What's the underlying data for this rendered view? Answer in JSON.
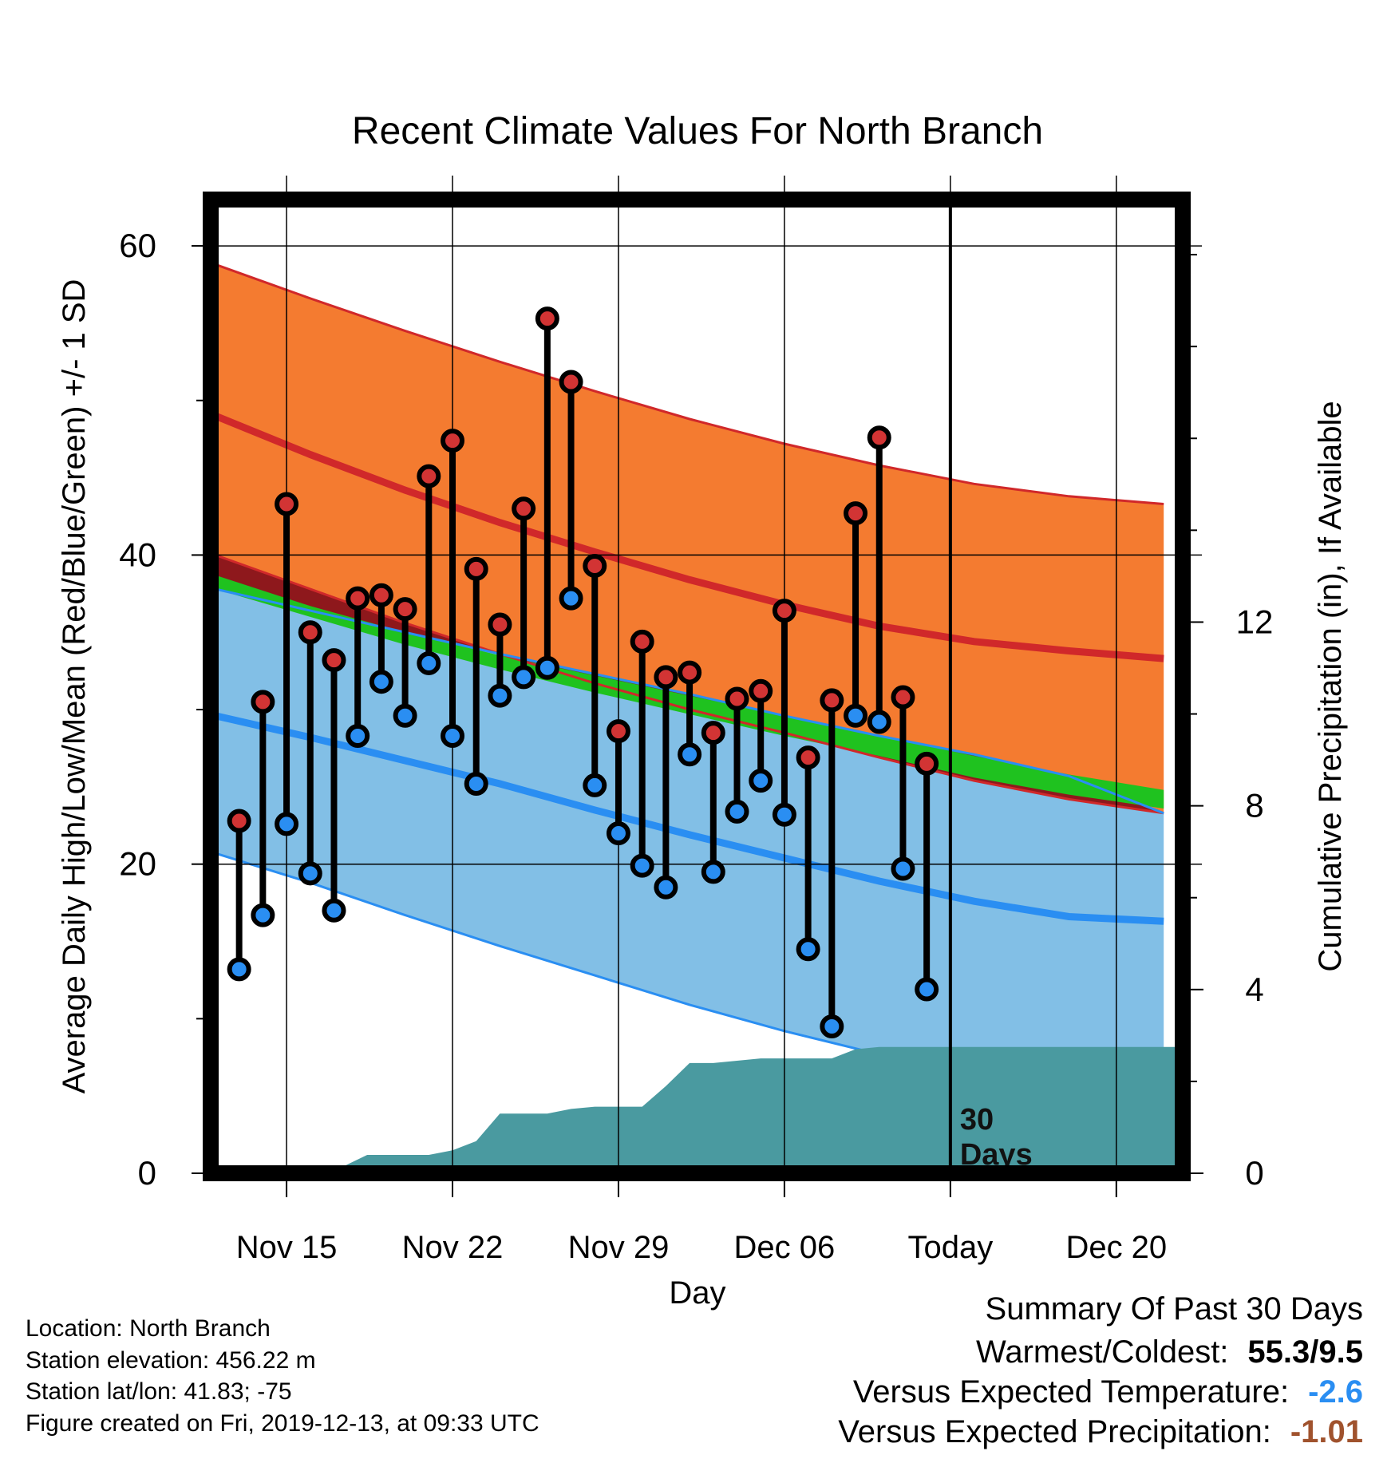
{
  "chart_data": {
    "type": "line",
    "title": "Recent Climate Values For North Branch",
    "xlabel": "Day",
    "ylabel_left": "Average Daily High/Low/Mean (Red/Blue/Green) +/- 1 SD",
    "ylabel_right": "Cumulative Precipitation (in), If Available",
    "ylim_left": [
      0,
      63
    ],
    "ylim_right": [
      0,
      21.2
    ],
    "x_ticks": [
      {
        "day": 15,
        "label": "Nov 15"
      },
      {
        "day": 22,
        "label": "Nov 22"
      },
      {
        "day": 29,
        "label": "Nov 29"
      },
      {
        "day": 36,
        "label": "Dec 06"
      },
      {
        "day": 43,
        "label": "Today"
      },
      {
        "day": 50,
        "label": "Dec 20"
      }
    ],
    "xlim": [
      11.8,
      52.8
    ],
    "y_ticks_left": [
      0,
      20,
      40,
      60
    ],
    "y_ticks_right": [
      0,
      4,
      8,
      12
    ],
    "today_day": 43,
    "today_annotation": [
      "30",
      "Days"
    ],
    "colors": {
      "high_band": "#f47b30",
      "high_line": "#d0282a",
      "low_band": "#82bfe6",
      "low_line": "#2a8ef2",
      "mean_band": "#1fc21f",
      "overlap": "#8e181c",
      "precip": "#4a9aa0",
      "high_dot": "#d23434",
      "low_dot": "#2a8ef2"
    },
    "normals": {
      "x": [
        12,
        16,
        20,
        24,
        28,
        32,
        36,
        40,
        44,
        48,
        52
      ],
      "high_mean": [
        49,
        46.5,
        44.2,
        42.1,
        40.2,
        38.4,
        36.8,
        35.4,
        34.4,
        33.8,
        33.3
      ],
      "high_sd_upper": [
        58.8,
        56.6,
        54.5,
        52.5,
        50.6,
        48.8,
        47.2,
        45.8,
        44.6,
        43.8,
        43.3
      ],
      "high_sd_lower": [
        40,
        37.8,
        35.6,
        33.6,
        31.7,
        30,
        28.5,
        26.9,
        25.4,
        24.2,
        23.3
      ],
      "low_mean": [
        29.6,
        28.2,
        26.7,
        25.2,
        23.5,
        21.9,
        20.4,
        18.9,
        17.6,
        16.6,
        16.3
      ],
      "low_sd_upper": [
        37.8,
        36.4,
        35,
        33.6,
        32.3,
        31,
        29.6,
        28.3,
        27.1,
        25.7,
        23.3
      ],
      "low_sd_lower": [
        20.7,
        18.8,
        16.7,
        14.7,
        12.8,
        10.9,
        9.2,
        7.7,
        5.9,
        4.3,
        3
      ],
      "mean_band_upper": [
        38.7,
        36.7,
        35,
        33.5,
        32.2,
        30.9,
        29.6,
        28.3,
        27,
        25.8,
        24.8
      ],
      "mean_band_lower": [
        37.8,
        36,
        34.2,
        32.6,
        31.1,
        29.7,
        28.3,
        27,
        25.6,
        24.5,
        23.6
      ]
    },
    "daily": [
      {
        "day": 13,
        "high": 22.8,
        "low": 13.2
      },
      {
        "day": 14,
        "high": 30.5,
        "low": 16.7
      },
      {
        "day": 15,
        "high": 43.3,
        "low": 22.6
      },
      {
        "day": 16,
        "high": 35.0,
        "low": 19.4
      },
      {
        "day": 17,
        "high": 33.2,
        "low": 17.0
      },
      {
        "day": 18,
        "high": 37.2,
        "low": 28.3
      },
      {
        "day": 19,
        "high": 37.4,
        "low": 31.8
      },
      {
        "day": 20,
        "high": 36.5,
        "low": 29.6
      },
      {
        "day": 21,
        "high": 45.1,
        "low": 33.0
      },
      {
        "day": 22,
        "high": 47.4,
        "low": 28.3
      },
      {
        "day": 23,
        "high": 39.1,
        "low": 25.2
      },
      {
        "day": 24,
        "high": 35.5,
        "low": 30.9
      },
      {
        "day": 25,
        "high": 43.0,
        "low": 32.1
      },
      {
        "day": 26,
        "high": 55.3,
        "low": 32.7
      },
      {
        "day": 27,
        "high": 51.2,
        "low": 37.2
      },
      {
        "day": 28,
        "high": 39.3,
        "low": 25.1
      },
      {
        "day": 29,
        "high": 28.6,
        "low": 22.0
      },
      {
        "day": 30,
        "high": 34.4,
        "low": 19.9
      },
      {
        "day": 31,
        "high": 32.1,
        "low": 18.5
      },
      {
        "day": 32,
        "high": 32.4,
        "low": 27.1
      },
      {
        "day": 33,
        "high": 28.5,
        "low": 19.5
      },
      {
        "day": 34,
        "high": 30.7,
        "low": 23.4
      },
      {
        "day": 35,
        "high": 31.2,
        "low": 25.4
      },
      {
        "day": 36,
        "high": 36.4,
        "low": 23.2
      },
      {
        "day": 37,
        "high": 26.9,
        "low": 14.5
      },
      {
        "day": 38,
        "high": 30.6,
        "low": 9.5
      },
      {
        "day": 39,
        "high": 42.7,
        "low": 29.6
      },
      {
        "day": 40,
        "high": 47.6,
        "low": 29.2
      },
      {
        "day": 41,
        "high": 30.8,
        "low": 19.7
      },
      {
        "day": 42,
        "high": 26.5,
        "low": 11.9
      }
    ],
    "precip_cumulative": {
      "x": [
        16.8,
        17.6,
        18.4,
        20,
        21,
        22,
        23,
        24,
        25,
        26,
        27,
        28,
        29,
        30,
        31,
        32,
        33,
        34,
        35,
        36,
        37,
        38,
        39,
        40,
        41,
        42,
        43,
        52.7
      ],
      "y": [
        0,
        0.2,
        0.4,
        0.4,
        0.4,
        0.5,
        0.7,
        1.3,
        1.3,
        1.3,
        1.4,
        1.45,
        1.45,
        1.45,
        1.9,
        2.4,
        2.4,
        2.45,
        2.5,
        2.5,
        2.5,
        2.5,
        2.7,
        2.75,
        2.75,
        2.75,
        2.75,
        2.75
      ]
    }
  },
  "footer": {
    "location": "Location: North Branch",
    "elevation": "Station elevation: 456.22 m",
    "latlon": "Station lat/lon: 41.83; -75",
    "created": "Figure created on Fri, 2019-12-13, at 09:33 UTC"
  },
  "summary": {
    "title": "Summary Of Past 30 Days",
    "warmest_coldest_label": "Warmest/Coldest:",
    "warmest_coldest_value": "55.3/9.5",
    "temp_label": "Versus Expected Temperature:",
    "temp_value": "-2.6",
    "temp_color": "#2a8ef2",
    "precip_label": "Versus Expected Precipitation:",
    "precip_value": "-1.01",
    "precip_color": "#a0522d"
  }
}
